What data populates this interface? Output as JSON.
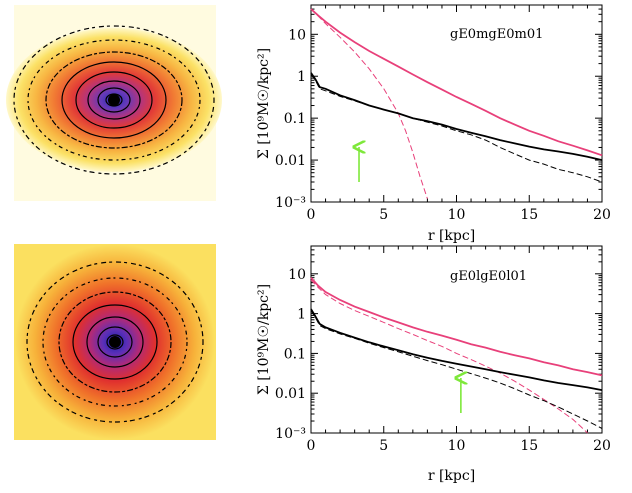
{
  "chart_data": [
    {
      "type": "line",
      "model_label": "gE0mgE0m01",
      "xlabel": "r [kpc]",
      "ylabel": "Σ [10⁹M☉/kpc²]",
      "x_ticks": [
        "0",
        "5",
        "10",
        "15",
        "20"
      ],
      "y_ticks": [
        "10",
        "1",
        "0.1",
        "0.01",
        "10⁻³"
      ],
      "xlim": [
        0,
        20
      ],
      "ylim": [
        0.001,
        50
      ],
      "y_scale": "log",
      "arrow_x": 3.3,
      "colors": {
        "magenta": "#e8407a",
        "black": "#000000",
        "arrow": "#7ee83a"
      },
      "series": [
        {
          "style": "magenta-solid",
          "x": [
            0,
            0.5,
            1,
            2,
            3,
            4,
            5,
            6,
            7,
            8,
            9,
            10,
            11,
            12,
            13,
            14,
            15,
            16,
            17,
            18,
            19,
            20
          ],
          "values": [
            40,
            28,
            20,
            11,
            6.5,
            4,
            2.6,
            1.7,
            1.1,
            0.72,
            0.48,
            0.32,
            0.22,
            0.15,
            0.1,
            0.07,
            0.05,
            0.038,
            0.028,
            0.022,
            0.017,
            0.013
          ]
        },
        {
          "style": "magenta-dashed",
          "x": [
            0,
            0.5,
            1,
            2,
            3,
            4,
            5,
            6,
            6.5,
            7,
            7.5,
            8
          ],
          "values": [
            40,
            27,
            18,
            8.5,
            3.8,
            1.5,
            0.5,
            0.13,
            0.05,
            0.015,
            0.004,
            0.0012
          ]
        },
        {
          "style": "black-solid",
          "x": [
            0,
            0.3,
            0.6,
            1,
            2,
            3,
            4,
            5,
            6,
            7,
            8,
            9,
            10,
            11,
            12,
            13,
            14,
            15,
            16,
            17,
            18,
            19,
            20
          ],
          "values": [
            1.2,
            0.85,
            0.55,
            0.5,
            0.35,
            0.27,
            0.2,
            0.16,
            0.13,
            0.1,
            0.085,
            0.07,
            0.055,
            0.045,
            0.037,
            0.03,
            0.025,
            0.021,
            0.018,
            0.016,
            0.014,
            0.012,
            0.01
          ]
        },
        {
          "style": "black-dashed",
          "x": [
            0,
            0.3,
            0.6,
            1,
            2,
            3,
            4,
            5,
            6,
            7,
            8,
            9,
            10,
            11,
            12,
            13,
            14,
            15,
            16,
            17,
            18,
            19,
            20
          ],
          "values": [
            1.1,
            0.8,
            0.5,
            0.45,
            0.33,
            0.26,
            0.2,
            0.16,
            0.13,
            0.1,
            0.08,
            0.065,
            0.05,
            0.04,
            0.03,
            0.02,
            0.014,
            0.01,
            0.008,
            0.006,
            0.005,
            0.004,
            0.003
          ]
        }
      ]
    },
    {
      "type": "line",
      "model_label": "gE0lgE0l01",
      "xlabel": "r [kpc]",
      "ylabel": "Σ [10⁹M☉/kpc²]",
      "x_ticks": [
        "0",
        "5",
        "10",
        "15",
        "20"
      ],
      "y_ticks": [
        "10",
        "1",
        "0.1",
        "0.01",
        "10⁻³"
      ],
      "xlim": [
        0,
        20
      ],
      "ylim": [
        0.001,
        50
      ],
      "y_scale": "log",
      "arrow_x": 10.3,
      "colors": {
        "magenta": "#e8407a",
        "black": "#000000",
        "arrow": "#7ee83a"
      },
      "series": [
        {
          "style": "magenta-solid",
          "x": [
            0,
            0.5,
            1,
            2,
            3,
            4,
            5,
            6,
            7,
            8,
            9,
            10,
            11,
            12,
            13,
            14,
            15,
            16,
            17,
            18,
            19,
            20
          ],
          "values": [
            8,
            5,
            3.5,
            2.2,
            1.5,
            1.1,
            0.8,
            0.6,
            0.45,
            0.35,
            0.28,
            0.22,
            0.17,
            0.14,
            0.11,
            0.09,
            0.075,
            0.06,
            0.05,
            0.04,
            0.034,
            0.028
          ]
        },
        {
          "style": "magenta-dashed",
          "x": [
            0,
            0.5,
            1,
            2,
            3,
            4,
            5,
            6,
            7,
            8,
            9,
            10,
            11,
            12,
            13,
            14,
            15,
            16,
            17,
            18,
            18.5,
            19
          ],
          "values": [
            7,
            4.5,
            3,
            1.8,
            1.2,
            0.85,
            0.6,
            0.42,
            0.3,
            0.21,
            0.15,
            0.1,
            0.07,
            0.048,
            0.032,
            0.02,
            0.012,
            0.007,
            0.004,
            0.0022,
            0.0015,
            0.001
          ]
        },
        {
          "style": "black-solid",
          "x": [
            0,
            0.3,
            0.6,
            1,
            2,
            3,
            4,
            5,
            6,
            7,
            8,
            9,
            10,
            11,
            12,
            13,
            14,
            15,
            16,
            17,
            18,
            19,
            20
          ],
          "values": [
            1.3,
            0.85,
            0.55,
            0.45,
            0.33,
            0.25,
            0.19,
            0.15,
            0.12,
            0.095,
            0.078,
            0.065,
            0.055,
            0.047,
            0.04,
            0.034,
            0.029,
            0.025,
            0.021,
            0.018,
            0.016,
            0.014,
            0.012
          ]
        },
        {
          "style": "black-dashed",
          "x": [
            0,
            0.3,
            0.6,
            1,
            2,
            3,
            4,
            5,
            6,
            7,
            8,
            9,
            10,
            11,
            12,
            13,
            14,
            15,
            16,
            17,
            18,
            19,
            20
          ],
          "values": [
            1.2,
            0.8,
            0.5,
            0.42,
            0.31,
            0.24,
            0.18,
            0.14,
            0.11,
            0.085,
            0.066,
            0.052,
            0.04,
            0.031,
            0.024,
            0.018,
            0.013,
            0.009,
            0.0065,
            0.0045,
            0.003,
            0.002,
            0.0013
          ]
        }
      ]
    }
  ]
}
